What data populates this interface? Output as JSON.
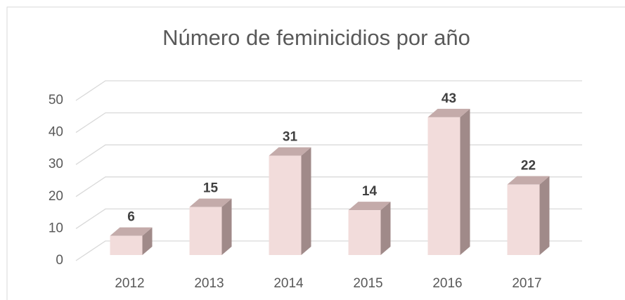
{
  "chart_data": {
    "type": "bar3d",
    "title": "Número de feminicidios por año",
    "categories": [
      "2012",
      "2013",
      "2014",
      "2015",
      "2016",
      "2017"
    ],
    "values": [
      6,
      15,
      31,
      14,
      43,
      22
    ],
    "color": "#f2dcdb",
    "ylim": [
      0,
      50
    ],
    "yticks": [
      0,
      10,
      20,
      30,
      40,
      50
    ],
    "grid": true
  }
}
